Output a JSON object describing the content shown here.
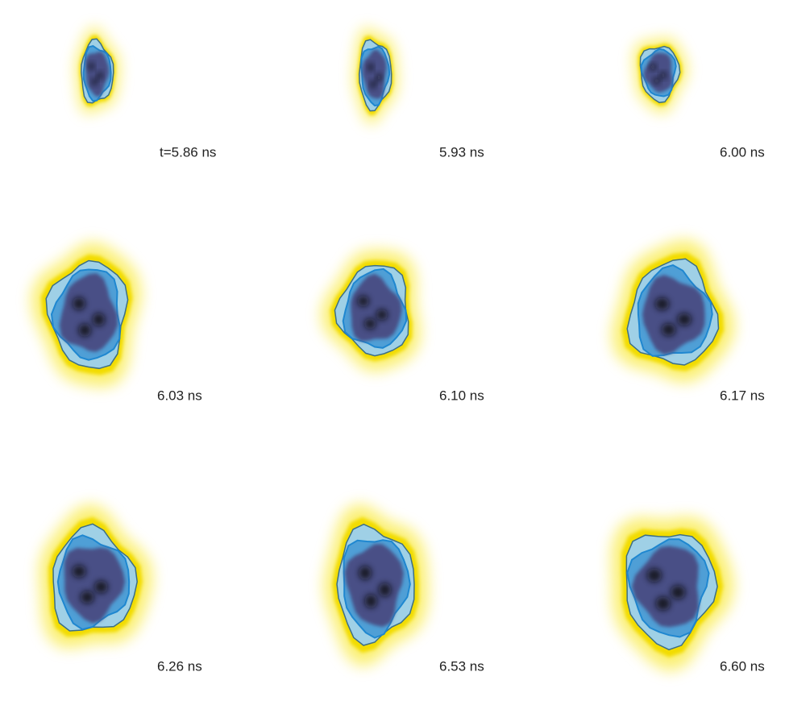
{
  "panels": [
    {
      "label": "t=5.86 ns"
    },
    {
      "label": "5.93 ns"
    },
    {
      "label": "6.00 ns"
    },
    {
      "label": "6.03 ns"
    },
    {
      "label": "6.10 ns"
    },
    {
      "label": "6.17 ns"
    },
    {
      "label": "6.26 ns"
    },
    {
      "label": "6.53 ns"
    },
    {
      "label": "6.60 ns"
    }
  ]
}
